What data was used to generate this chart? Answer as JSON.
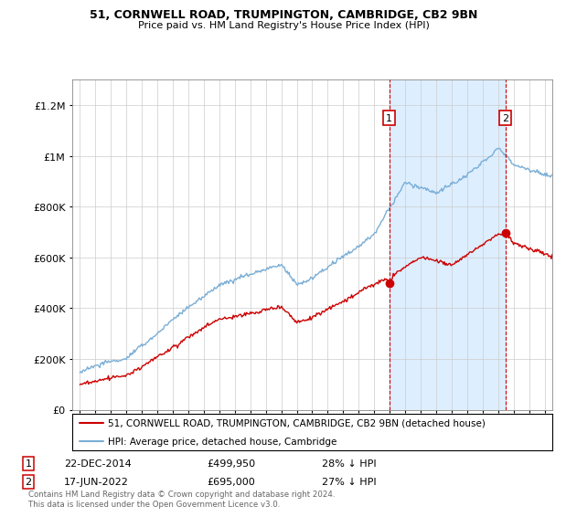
{
  "title1": "51, CORNWELL ROAD, TRUMPINGTON, CAMBRIDGE, CB2 9BN",
  "title2": "Price paid vs. HM Land Registry's House Price Index (HPI)",
  "annotation1": {
    "label": "1",
    "date": "22-DEC-2014",
    "price": 499950,
    "pct": "28% ↓ HPI",
    "x_year": 2014.97
  },
  "annotation2": {
    "label": "2",
    "date": "17-JUN-2022",
    "price": 695000,
    "pct": "27% ↓ HPI",
    "x_year": 2022.46
  },
  "legend_line1": "51, CORNWELL ROAD, TRUMPINGTON, CAMBRIDGE, CB2 9BN (detached house)",
  "legend_line2": "HPI: Average price, detached house, Cambridge",
  "footer": "Contains HM Land Registry data © Crown copyright and database right 2024.\nThis data is licensed under the Open Government Licence v3.0.",
  "ylim": [
    0,
    1300000
  ],
  "xlim_start": 1994.5,
  "xlim_end": 2025.5,
  "red_color": "#cc0000",
  "blue_color": "#7aaed6",
  "shade_color": "#ddeeff",
  "grid_color": "#cccccc",
  "plot_bg": "#ffffff"
}
